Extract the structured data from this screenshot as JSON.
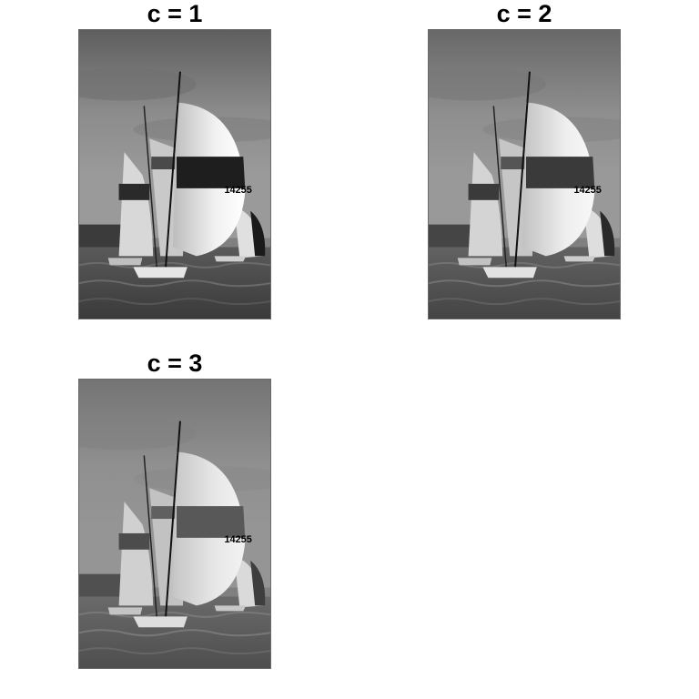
{
  "panels": [
    {
      "title": "c = 1",
      "sail_number": "14255",
      "contrast": 1
    },
    {
      "title": "c = 2",
      "sail_number": "14255",
      "contrast": 2
    },
    {
      "title": "c = 3",
      "sail_number": "14255",
      "contrast": 3
    }
  ]
}
